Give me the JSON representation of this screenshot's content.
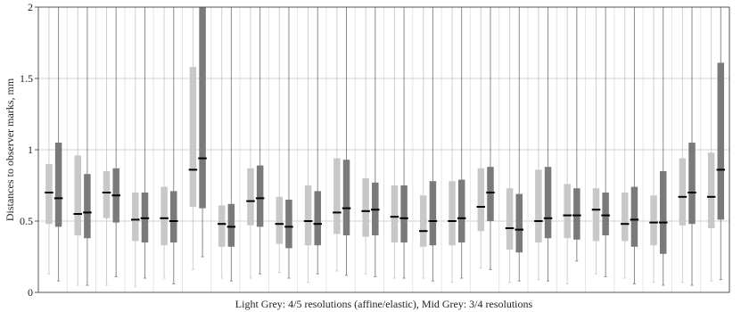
{
  "chart_data": {
    "type": "box",
    "title": "",
    "xlabel": "Light Grey: 4/5 resolutions (affine/elastic), Mid Grey: 3/4 resolutions",
    "ylabel": "Distances to observer marks, mm",
    "ylim": [
      0,
      2
    ],
    "yticks": [
      0,
      0.5,
      1,
      1.5,
      2
    ],
    "yticklabels": [
      "0",
      "0.5",
      "1",
      "1.5",
      "2"
    ],
    "grid": true,
    "series": [
      {
        "color": "#c8c8c8",
        "boxes": [
          {
            "q1": 0.48,
            "median": 0.7,
            "q3": 0.9,
            "wlo": 0.13,
            "whi": 2.0
          },
          {
            "q1": 0.4,
            "median": 0.55,
            "q3": 0.96,
            "wlo": 0.05,
            "whi": 2.0
          },
          {
            "q1": 0.52,
            "median": 0.7,
            "q3": 0.85,
            "wlo": 0.05,
            "whi": 2.0
          },
          {
            "q1": 0.36,
            "median": 0.51,
            "q3": 0.7,
            "wlo": 0.04,
            "whi": 2.0
          },
          {
            "q1": 0.33,
            "median": 0.52,
            "q3": 0.74,
            "wlo": 0.1,
            "whi": 2.0
          },
          {
            "q1": 0.6,
            "median": 0.86,
            "q3": 1.58,
            "wlo": 0.16,
            "whi": 2.0
          },
          {
            "q1": 0.32,
            "median": 0.48,
            "q3": 0.61,
            "wlo": 0.1,
            "whi": 2.0
          },
          {
            "q1": 0.47,
            "median": 0.64,
            "q3": 0.87,
            "wlo": 0.1,
            "whi": 2.0
          },
          {
            "q1": 0.34,
            "median": 0.48,
            "q3": 0.67,
            "wlo": 0.14,
            "whi": 2.0
          },
          {
            "q1": 0.33,
            "median": 0.5,
            "q3": 0.75,
            "wlo": 0.07,
            "whi": 2.0
          },
          {
            "q1": 0.41,
            "median": 0.56,
            "q3": 0.94,
            "wlo": 0.15,
            "whi": 2.0
          },
          {
            "q1": 0.39,
            "median": 0.57,
            "q3": 0.8,
            "wlo": 0.13,
            "whi": 2.0
          },
          {
            "q1": 0.35,
            "median": 0.53,
            "q3": 0.75,
            "wlo": 0.1,
            "whi": 2.0
          },
          {
            "q1": 0.32,
            "median": 0.43,
            "q3": 0.68,
            "wlo": 0.1,
            "whi": 2.0
          },
          {
            "q1": 0.33,
            "median": 0.5,
            "q3": 0.78,
            "wlo": 0.07,
            "whi": 2.0
          },
          {
            "q1": 0.43,
            "median": 0.6,
            "q3": 0.87,
            "wlo": 0.17,
            "whi": 2.0
          },
          {
            "q1": 0.3,
            "median": 0.45,
            "q3": 0.73,
            "wlo": 0.07,
            "whi": 2.0
          },
          {
            "q1": 0.35,
            "median": 0.5,
            "q3": 0.86,
            "wlo": 0.09,
            "whi": 2.0
          },
          {
            "q1": 0.38,
            "median": 0.54,
            "q3": 0.76,
            "wlo": 0.06,
            "whi": 2.0
          },
          {
            "q1": 0.36,
            "median": 0.58,
            "q3": 0.73,
            "wlo": 0.13,
            "whi": 2.0
          },
          {
            "q1": 0.36,
            "median": 0.48,
            "q3": 0.7,
            "wlo": 0.1,
            "whi": 2.0
          },
          {
            "q1": 0.33,
            "median": 0.49,
            "q3": 0.68,
            "wlo": 0.07,
            "whi": 2.0
          },
          {
            "q1": 0.47,
            "median": 0.67,
            "q3": 0.94,
            "wlo": 0.07,
            "whi": 2.0
          },
          {
            "q1": 0.45,
            "median": 0.67,
            "q3": 0.98,
            "wlo": 0.08,
            "whi": 2.0
          }
        ]
      },
      {
        "color": "#7a7a7a",
        "boxes": [
          {
            "q1": 0.46,
            "median": 0.66,
            "q3": 1.05,
            "wlo": 0.08,
            "whi": 2.0
          },
          {
            "q1": 0.38,
            "median": 0.56,
            "q3": 0.83,
            "wlo": 0.05,
            "whi": 2.0
          },
          {
            "q1": 0.49,
            "median": 0.68,
            "q3": 0.87,
            "wlo": 0.11,
            "whi": 2.0
          },
          {
            "q1": 0.35,
            "median": 0.52,
            "q3": 0.7,
            "wlo": 0.1,
            "whi": 2.0
          },
          {
            "q1": 0.35,
            "median": 0.5,
            "q3": 0.71,
            "wlo": 0.06,
            "whi": 2.0
          },
          {
            "q1": 0.59,
            "median": 0.94,
            "q3": 2.0,
            "wlo": 0.25,
            "whi": 2.0
          },
          {
            "q1": 0.32,
            "median": 0.46,
            "q3": 0.62,
            "wlo": 0.08,
            "whi": 2.0
          },
          {
            "q1": 0.46,
            "median": 0.66,
            "q3": 0.89,
            "wlo": 0.13,
            "whi": 2.0
          },
          {
            "q1": 0.31,
            "median": 0.46,
            "q3": 0.65,
            "wlo": 0.1,
            "whi": 2.0
          },
          {
            "q1": 0.33,
            "median": 0.48,
            "q3": 0.71,
            "wlo": 0.13,
            "whi": 2.0
          },
          {
            "q1": 0.4,
            "median": 0.59,
            "q3": 0.93,
            "wlo": 0.12,
            "whi": 2.0
          },
          {
            "q1": 0.4,
            "median": 0.58,
            "q3": 0.77,
            "wlo": 0.11,
            "whi": 2.0
          },
          {
            "q1": 0.35,
            "median": 0.52,
            "q3": 0.75,
            "wlo": 0.1,
            "whi": 2.0
          },
          {
            "q1": 0.33,
            "median": 0.5,
            "q3": 0.78,
            "wlo": 0.08,
            "whi": 2.0
          },
          {
            "q1": 0.35,
            "median": 0.52,
            "q3": 0.79,
            "wlo": 0.1,
            "whi": 2.0
          },
          {
            "q1": 0.5,
            "median": 0.7,
            "q3": 0.88,
            "wlo": 0.16,
            "whi": 2.0
          },
          {
            "q1": 0.28,
            "median": 0.44,
            "q3": 0.69,
            "wlo": 0.08,
            "whi": 2.0
          },
          {
            "q1": 0.38,
            "median": 0.52,
            "q3": 0.88,
            "wlo": 0.08,
            "whi": 2.0
          },
          {
            "q1": 0.37,
            "median": 0.54,
            "q3": 0.73,
            "wlo": 0.22,
            "whi": 2.0
          },
          {
            "q1": 0.4,
            "median": 0.54,
            "q3": 0.7,
            "wlo": 0.11,
            "whi": 2.0
          },
          {
            "q1": 0.32,
            "median": 0.51,
            "q3": 0.74,
            "wlo": 0.06,
            "whi": 2.0
          },
          {
            "q1": 0.27,
            "median": 0.49,
            "q3": 0.85,
            "wlo": 0.05,
            "whi": 2.0
          },
          {
            "q1": 0.48,
            "median": 0.7,
            "q3": 1.05,
            "wlo": 0.05,
            "whi": 2.0
          },
          {
            "q1": 0.51,
            "median": 0.86,
            "q3": 1.61,
            "wlo": 0.09,
            "whi": 2.0
          }
        ]
      }
    ]
  }
}
